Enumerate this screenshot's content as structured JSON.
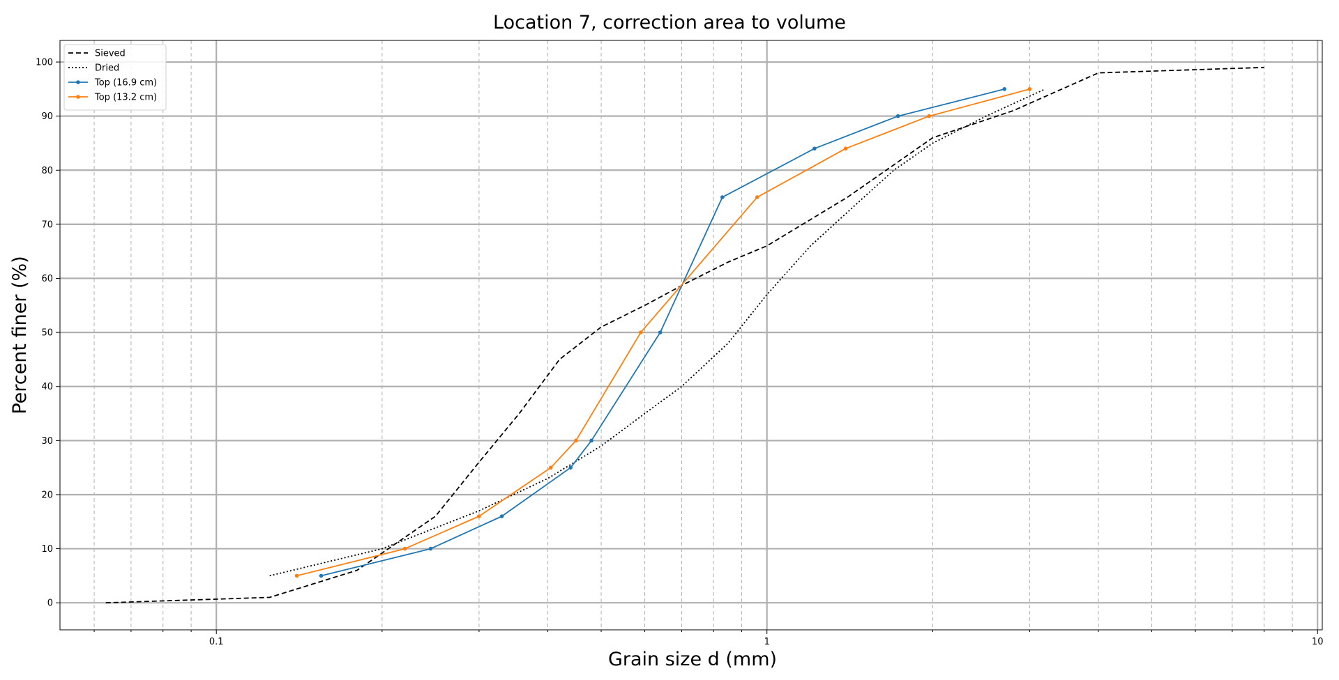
{
  "chart_data": {
    "type": "line",
    "title": "Location 7, correction area to volume",
    "xlabel": "Grain size d (mm)",
    "ylabel": "Percent finer (%)",
    "xscale": "log",
    "xlim": [
      0.052,
      10.2
    ],
    "ylim": [
      -5,
      104
    ],
    "xticks": [
      {
        "value": 0.1,
        "label": "0.1"
      },
      {
        "value": 1,
        "label": "1"
      },
      {
        "value": 10,
        "label": "10"
      }
    ],
    "yticks": [
      0,
      10,
      20,
      30,
      40,
      50,
      60,
      70,
      80,
      90,
      100
    ],
    "grid": {
      "major": true,
      "minor": true
    },
    "legend_position": "top-left",
    "series": [
      {
        "name": "Sieved",
        "color": "#000000",
        "style": "dashed",
        "marker": false,
        "points": [
          [
            0.063,
            0
          ],
          [
            0.125,
            1
          ],
          [
            0.18,
            6
          ],
          [
            0.25,
            16
          ],
          [
            0.3,
            26
          ],
          [
            0.355,
            35
          ],
          [
            0.42,
            45
          ],
          [
            0.5,
            51
          ],
          [
            0.6,
            55
          ],
          [
            0.71,
            59
          ],
          [
            0.85,
            63
          ],
          [
            1.0,
            66
          ],
          [
            1.4,
            75
          ],
          [
            2.0,
            86
          ],
          [
            2.8,
            91
          ],
          [
            4.0,
            98
          ],
          [
            8.0,
            99
          ]
        ]
      },
      {
        "name": "Dried",
        "color": "#000000",
        "style": "dotted",
        "marker": false,
        "points": [
          [
            0.125,
            5
          ],
          [
            0.2,
            10
          ],
          [
            0.3,
            17
          ],
          [
            0.4,
            23
          ],
          [
            0.5,
            29
          ],
          [
            0.6,
            35
          ],
          [
            0.7,
            40
          ],
          [
            0.85,
            48
          ],
          [
            1.0,
            57
          ],
          [
            1.2,
            66
          ],
          [
            1.5,
            75
          ],
          [
            1.7,
            80
          ],
          [
            2.0,
            85
          ],
          [
            2.5,
            90
          ],
          [
            3.2,
            95
          ]
        ]
      },
      {
        "name": "Top (16.9 cm)",
        "color": "#1f77b4",
        "style": "solid",
        "marker": true,
        "points": [
          [
            0.155,
            5
          ],
          [
            0.245,
            10
          ],
          [
            0.33,
            16
          ],
          [
            0.44,
            25
          ],
          [
            0.48,
            30
          ],
          [
            0.64,
            50
          ],
          [
            0.83,
            75
          ],
          [
            1.22,
            84
          ],
          [
            1.73,
            90
          ],
          [
            2.7,
            95
          ]
        ]
      },
      {
        "name": "Top (13.2 cm)",
        "color": "#ff7f0e",
        "style": "solid",
        "marker": true,
        "points": [
          [
            0.14,
            5
          ],
          [
            0.22,
            10
          ],
          [
            0.3,
            16
          ],
          [
            0.405,
            25
          ],
          [
            0.45,
            30
          ],
          [
            0.59,
            50
          ],
          [
            0.96,
            75
          ],
          [
            1.39,
            84
          ],
          [
            1.97,
            90
          ],
          [
            3.0,
            95
          ]
        ]
      }
    ]
  }
}
